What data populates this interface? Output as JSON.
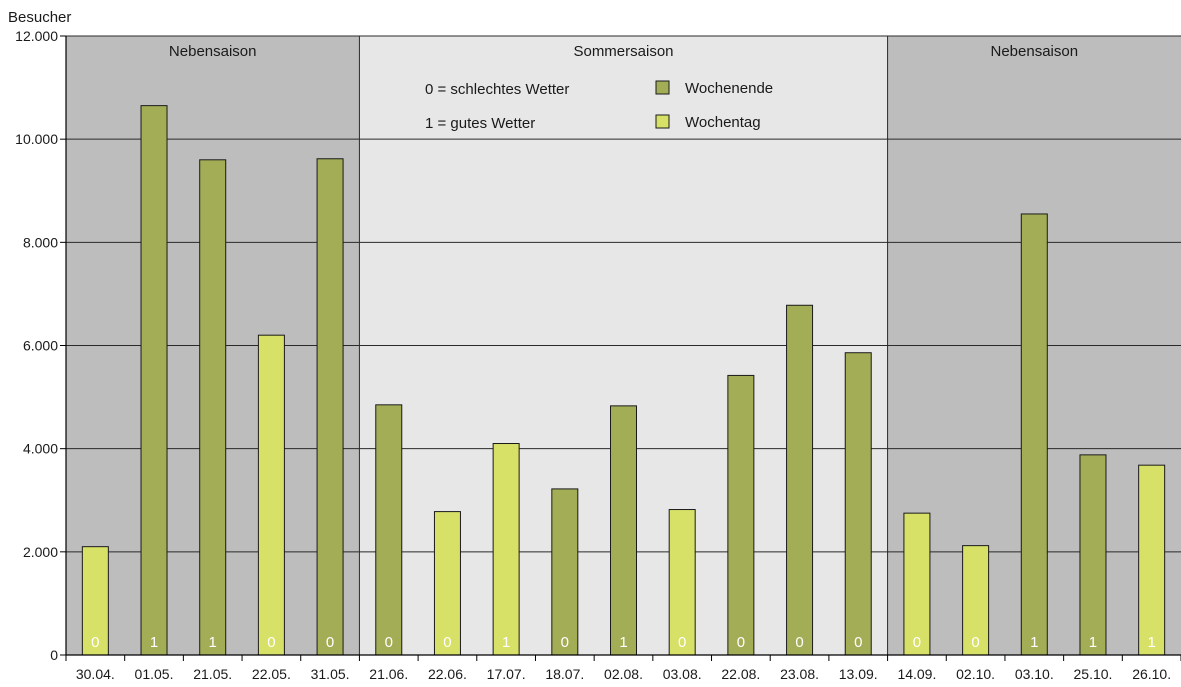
{
  "chart_data": {
    "type": "bar",
    "ylabel": "Besucher",
    "ylim": [
      0,
      12000
    ],
    "yticks": [
      0,
      2000,
      4000,
      6000,
      8000,
      10000,
      12000
    ],
    "ytick_labels": [
      "0",
      "2.000",
      "4.000",
      "6.000",
      "8.000",
      "10.000",
      "12.000"
    ],
    "grid": true,
    "categories": [
      "30.04.",
      "01.05.",
      "21.05.",
      "22.05.",
      "31.05.",
      "21.06.",
      "22.06.",
      "17.07.",
      "18.07.",
      "02.08.",
      "03.08.",
      "22.08.",
      "23.08.",
      "13.09.",
      "14.09.",
      "02.10.",
      "03.10.",
      "25.10.",
      "26.10."
    ],
    "values": [
      2100,
      10650,
      9600,
      6200,
      9620,
      4850,
      2780,
      4100,
      3220,
      4830,
      2820,
      5420,
      6780,
      5860,
      2750,
      2120,
      8550,
      3880,
      3680
    ],
    "day_type": [
      "Wochentag",
      "Wochenende",
      "Wochenende",
      "Wochentag",
      "Wochenende",
      "Wochenende",
      "Wochentag",
      "Wochentag",
      "Wochenende",
      "Wochenende",
      "Wochentag",
      "Wochenende",
      "Wochenende",
      "Wochenende",
      "Wochentag",
      "Wochentag",
      "Wochenende",
      "Wochenende",
      "Wochentag"
    ],
    "weather": [
      "0",
      "1",
      "1",
      "0",
      "0",
      "0",
      "0",
      "1",
      "0",
      "1",
      "0",
      "0",
      "0",
      "0",
      "0",
      "0",
      "1",
      "1",
      "1"
    ],
    "seasons": [
      {
        "label": "Nebensaison",
        "from": 0,
        "to": 4,
        "color": "#bdbdbd"
      },
      {
        "label": "Sommersaison",
        "from": 5,
        "to": 13,
        "color": "#e7e7e8"
      },
      {
        "label": "Nebensaison",
        "from": 14,
        "to": 18,
        "color": "#bdbdbd"
      }
    ],
    "legend": {
      "placement": "top-center",
      "weather_notes": [
        "0 = schlechtes Wetter",
        "1 = gutes Wetter"
      ],
      "series": [
        {
          "name": "Wochenende",
          "color": "#a3ad56"
        },
        {
          "name": "Wochentag",
          "color": "#d7e067"
        }
      ]
    }
  }
}
